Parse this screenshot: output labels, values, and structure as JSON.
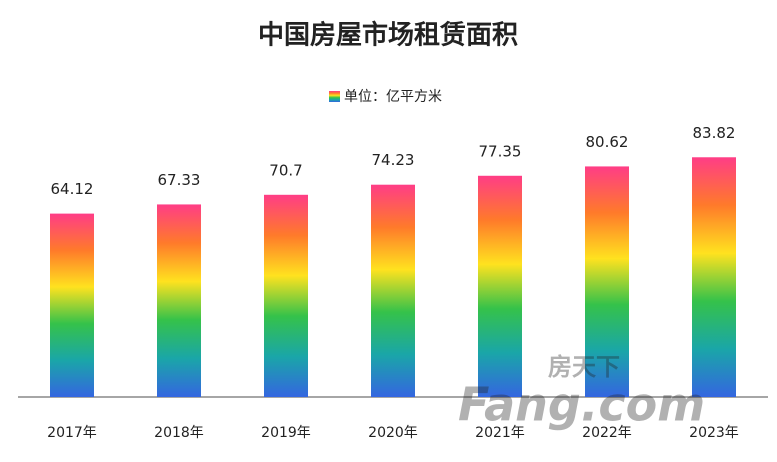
{
  "chart_data": {
    "type": "bar",
    "title": "中国房屋市场租赁面积",
    "legend": "单位：亿平方米",
    "categories": [
      "2017年",
      "2018年",
      "2019年",
      "2020年",
      "2021年",
      "2022年",
      "2023年"
    ],
    "values": [
      64.12,
      67.33,
      70.7,
      74.23,
      77.35,
      80.62,
      83.82
    ],
    "gradient": [
      "#ff3d86",
      "#ff7a2a",
      "#ffe21f",
      "#35c24a",
      "#1aa6a8",
      "#3466e0"
    ],
    "ylim": [
      0,
      100
    ],
    "watermark": [
      "房天下",
      "Fang.com"
    ]
  }
}
